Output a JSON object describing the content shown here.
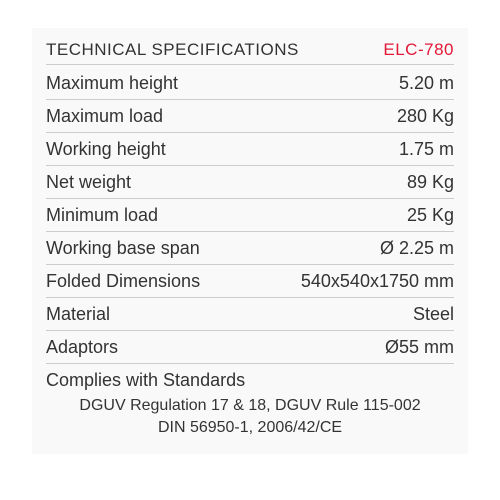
{
  "header": {
    "title": "TECHNICAL SPECIFICATIONS",
    "model": "ELC-780"
  },
  "specs": [
    {
      "label": "Maximum height",
      "value": "5.20 m"
    },
    {
      "label": "Maximum load",
      "value": "280 Kg"
    },
    {
      "label": "Working height",
      "value": "1.75 m"
    },
    {
      "label": "Net weight",
      "value": "89 Kg"
    },
    {
      "label": "Minimum load",
      "value": "25 Kg"
    },
    {
      "label": "Working base span",
      "value": "Ø 2.25 m"
    },
    {
      "label": "Folded Dimensions",
      "value": "540x540x1750 mm"
    },
    {
      "label": "Material",
      "value": "Steel"
    },
    {
      "label": "Adaptors",
      "value": "Ø55 mm"
    }
  ],
  "compliance": {
    "title": "Complies with Standards",
    "line1": "DGUV Regulation 17 & 18, DGUV Rule 115-002",
    "line2": "DIN 56950-1, 2006/42/CE"
  },
  "styling": {
    "type": "table",
    "background_color": "#f9f9f9",
    "border_color": "#cccccc",
    "text_color": "#333333",
    "accent_color": "#e31837",
    "header_fontsize": 17,
    "row_fontsize": 18,
    "compliance_fontsize": 16,
    "font_weight": 300,
    "font_family": "Helvetica Neue"
  }
}
